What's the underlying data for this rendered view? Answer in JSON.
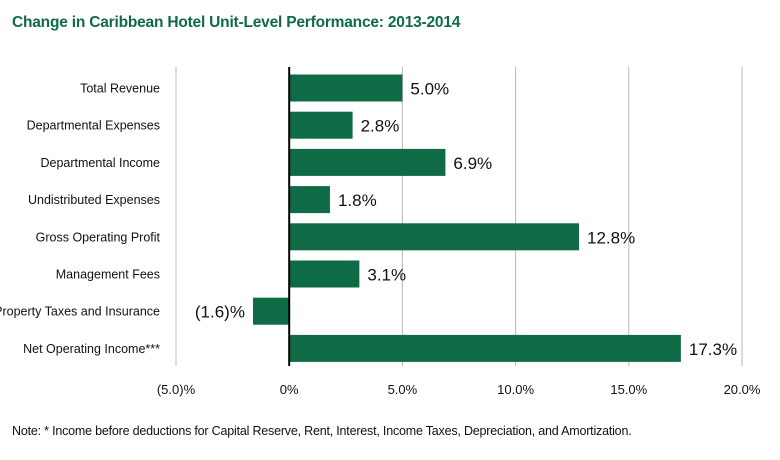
{
  "header": {
    "title": "Change in Caribbean Hotel Unit-Level Performance: 2013-2014"
  },
  "colors": {
    "bar": "#0f6b45",
    "title": "#0f6b45",
    "grid": "#b8b8b8",
    "axis": "#000000",
    "text": "#111111"
  },
  "chart_data": {
    "type": "bar",
    "orientation": "horizontal",
    "title": "Change in Caribbean Hotel Unit-Level Performance: 2013-2014",
    "categories": [
      "Total Revenue",
      "Departmental Expenses",
      "Departmental Income",
      "Undistributed Expenses",
      "Gross Operating Profit",
      "Management Fees",
      "Property Taxes and Insurance",
      "Net Operating Income***"
    ],
    "values": [
      5.0,
      2.8,
      6.9,
      1.8,
      12.8,
      3.1,
      -1.6,
      17.3
    ],
    "value_labels": [
      "5.0%",
      "2.8%",
      "6.9%",
      "1.8%",
      "12.8%",
      "3.1%",
      "(1.6)%",
      "17.3%"
    ],
    "xlim": [
      -5,
      20
    ],
    "x_ticks": [
      -5,
      0,
      5,
      10,
      15,
      20
    ],
    "x_tick_labels": [
      "(5.0)%",
      "0%",
      "5.0%",
      "10.0%",
      "15.0%",
      "20.0%"
    ],
    "grid": true,
    "xlabel": "",
    "ylabel": ""
  },
  "footer": {
    "note": "Note: * Income before deductions for Capital Reserve, Rent, Interest, Income Taxes, Depreciation, and Amortization."
  }
}
